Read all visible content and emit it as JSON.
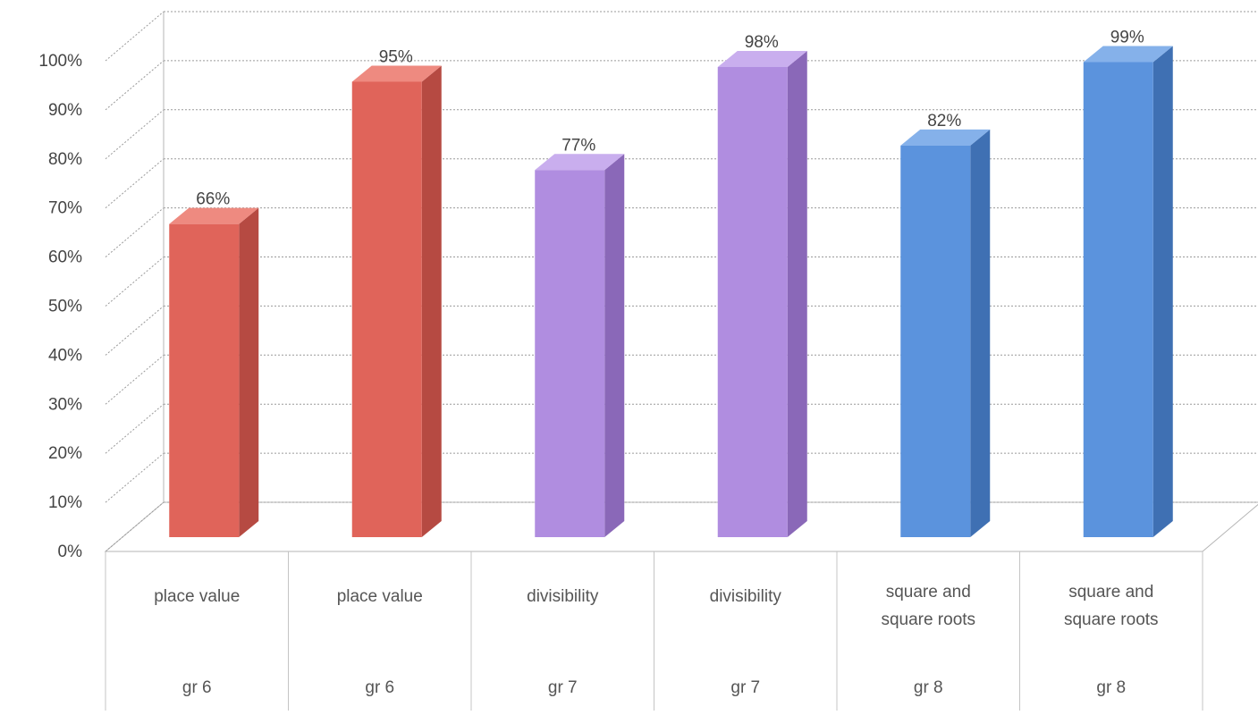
{
  "chart_data": {
    "type": "bar",
    "style": "3d-column",
    "categories": [
      {
        "label": "place value",
        "group": "gr 6"
      },
      {
        "label": "place value",
        "group": "gr 6"
      },
      {
        "label": "divisibility",
        "group": "gr 7"
      },
      {
        "label": "divisibility",
        "group": "gr 7"
      },
      {
        "label": "square and square roots",
        "group": "gr 8"
      },
      {
        "label": "square and square roots",
        "group": "gr 8"
      }
    ],
    "values": [
      66,
      95,
      77,
      98,
      82,
      99
    ],
    "data_labels": [
      "66%",
      "95%",
      "77%",
      "98%",
      "82%",
      "99%"
    ],
    "colors": [
      "#e0645a",
      "#e0645a",
      "#b08de0",
      "#b08de0",
      "#5b93dd",
      "#5b93dd"
    ],
    "side_colors": [
      "#b64a42",
      "#b64a42",
      "#8a68b8",
      "#8a68b8",
      "#3f70b3",
      "#3f70b3"
    ],
    "top_colors": [
      "#ee8a80",
      "#ee8a80",
      "#c9aeee",
      "#c9aeee",
      "#85b1ea",
      "#85b1ea"
    ],
    "ylim": [
      0,
      100
    ],
    "yticks": [
      "0%",
      "10%",
      "20%",
      "30%",
      "40%",
      "50%",
      "60%",
      "70%",
      "80%",
      "90%",
      "100%"
    ],
    "grid": true,
    "legend": "none",
    "title": "",
    "xlabel": "",
    "ylabel": ""
  }
}
